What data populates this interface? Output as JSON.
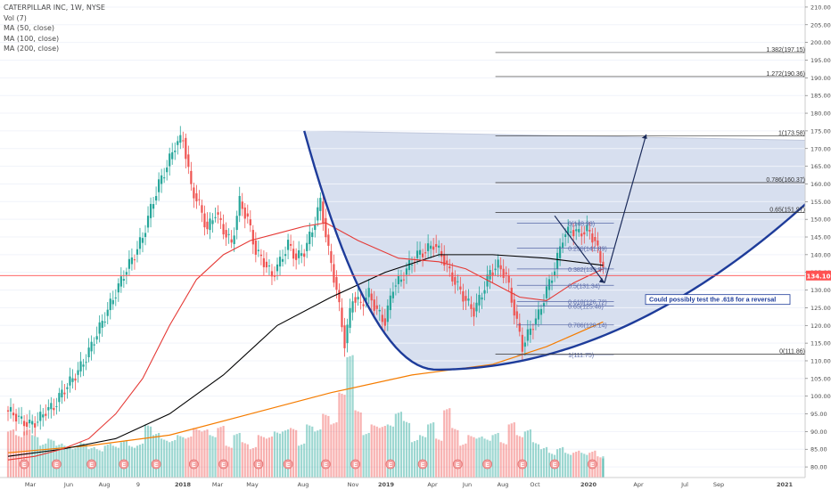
{
  "legend": {
    "title": "CATERPILLAR INC, 1W, NYSE",
    "vol": "Vol (7)",
    "ma50": "MA (50, close)",
    "ma100": "MA (100, close)",
    "ma200": "MA (200, close)"
  },
  "colors": {
    "up": "#26a69a",
    "down": "#ef5350",
    "ma50": "#e53935",
    "ma100": "#000000",
    "ma200": "#f57c00",
    "cup_line": "#1e3c9a",
    "cup_fill": "#c9d4ea",
    "price_line": "#ff5252",
    "fib": "#5a6aa8"
  },
  "chart_data": {
    "type": "candlestick",
    "title": "CATERPILLAR INC, 1W, NYSE",
    "ylim": [
      77,
      212
    ],
    "y_ticks": [
      80,
      85,
      90,
      95,
      100,
      105,
      110,
      115,
      120,
      125,
      130,
      135,
      140,
      145,
      150,
      155,
      160,
      165,
      170,
      175,
      180,
      185,
      190,
      195,
      200,
      205,
      210
    ],
    "x_ticks": [
      "Mar",
      "Jun",
      "Aug",
      "9",
      "2018",
      "Mar",
      "May",
      "Aug",
      "Nov",
      "2019",
      "Apr",
      "Jun",
      "Aug",
      "Oct",
      "2020",
      "Apr",
      "Jul",
      "Sep",
      "2021"
    ],
    "current_price": "134.10",
    "close_series": [
      [
        0,
        96
      ],
      [
        3,
        95
      ],
      [
        6,
        93
      ],
      [
        9,
        92
      ],
      [
        12,
        93
      ],
      [
        15,
        96
      ],
      [
        18,
        97
      ],
      [
        21,
        101
      ],
      [
        24,
        104
      ],
      [
        27,
        107
      ],
      [
        30,
        111
      ],
      [
        33,
        116
      ],
      [
        36,
        121
      ],
      [
        39,
        126
      ],
      [
        42,
        131
      ],
      [
        45,
        136
      ],
      [
        48,
        140
      ],
      [
        51,
        145
      ],
      [
        54,
        153
      ],
      [
        57,
        160
      ],
      [
        60,
        165
      ],
      [
        63,
        171
      ],
      [
        66,
        173
      ],
      [
        69,
        159
      ],
      [
        72,
        154
      ],
      [
        75,
        147
      ],
      [
        78,
        152
      ],
      [
        81,
        147
      ],
      [
        84,
        143
      ],
      [
        87,
        155
      ],
      [
        90,
        150
      ],
      [
        93,
        141
      ],
      [
        96,
        138
      ],
      [
        99,
        134
      ],
      [
        102,
        138
      ],
      [
        105,
        143
      ],
      [
        108,
        139
      ],
      [
        111,
        141
      ],
      [
        114,
        147
      ],
      [
        117,
        155
      ],
      [
        120,
        141
      ],
      [
        123,
        130
      ],
      [
        126,
        115
      ],
      [
        129,
        128
      ],
      [
        132,
        126
      ],
      [
        135,
        129
      ],
      [
        138,
        124
      ],
      [
        141,
        121
      ],
      [
        144,
        131
      ],
      [
        147,
        133
      ],
      [
        150,
        137
      ],
      [
        153,
        140
      ],
      [
        156,
        141
      ],
      [
        159,
        143
      ],
      [
        162,
        140
      ],
      [
        165,
        135
      ],
      [
        168,
        131
      ],
      [
        171,
        127
      ],
      [
        174,
        124
      ],
      [
        177,
        129
      ],
      [
        180,
        135
      ],
      [
        183,
        137
      ],
      [
        186,
        134
      ],
      [
        189,
        124
      ],
      [
        192,
        114
      ],
      [
        195,
        119
      ],
      [
        198,
        123
      ],
      [
        201,
        130
      ],
      [
        204,
        136
      ],
      [
        207,
        145
      ],
      [
        210,
        147
      ],
      [
        213,
        146
      ],
      [
        216,
        147
      ],
      [
        219,
        144
      ],
      [
        221,
        138
      ]
    ],
    "ma50": [
      [
        0,
        82
      ],
      [
        10,
        83
      ],
      [
        20,
        85
      ],
      [
        30,
        88
      ],
      [
        40,
        95
      ],
      [
        50,
        105
      ],
      [
        60,
        120
      ],
      [
        70,
        133
      ],
      [
        80,
        140
      ],
      [
        90,
        144
      ],
      [
        100,
        146
      ],
      [
        110,
        148
      ],
      [
        118,
        149
      ],
      [
        130,
        144
      ],
      [
        145,
        139
      ],
      [
        160,
        138
      ],
      [
        170,
        136
      ],
      [
        180,
        132
      ],
      [
        190,
        128
      ],
      [
        200,
        127
      ],
      [
        210,
        132
      ],
      [
        221,
        136
      ]
    ],
    "ma100": [
      [
        0,
        83
      ],
      [
        20,
        85
      ],
      [
        40,
        88
      ],
      [
        60,
        95
      ],
      [
        80,
        106
      ],
      [
        100,
        120
      ],
      [
        120,
        128
      ],
      [
        140,
        135
      ],
      [
        160,
        140
      ],
      [
        180,
        140
      ],
      [
        200,
        139
      ],
      [
        221,
        137
      ]
    ],
    "ma200": [
      [
        0,
        84
      ],
      [
        30,
        86
      ],
      [
        60,
        89
      ],
      [
        90,
        95
      ],
      [
        120,
        101
      ],
      [
        150,
        106
      ],
      [
        180,
        109
      ],
      [
        200,
        114
      ],
      [
        221,
        121
      ]
    ],
    "volume": [
      [
        0,
        90
      ],
      [
        3,
        89
      ],
      [
        6,
        90
      ],
      [
        9,
        89
      ],
      [
        12,
        86
      ],
      [
        15,
        88
      ],
      [
        18,
        86
      ],
      [
        21,
        86
      ],
      [
        24,
        85
      ],
      [
        27,
        87
      ],
      [
        30,
        85
      ],
      [
        33,
        85
      ],
      [
        36,
        86
      ],
      [
        39,
        86
      ],
      [
        42,
        87
      ],
      [
        45,
        86
      ],
      [
        48,
        86
      ],
      [
        51,
        92
      ],
      [
        54,
        89
      ],
      [
        57,
        88
      ],
      [
        60,
        87
      ],
      [
        63,
        89
      ],
      [
        66,
        88
      ],
      [
        69,
        91
      ],
      [
        72,
        90
      ],
      [
        75,
        89
      ],
      [
        78,
        91
      ],
      [
        81,
        86
      ],
      [
        84,
        89
      ],
      [
        87,
        87
      ],
      [
        90,
        85
      ],
      [
        93,
        89
      ],
      [
        96,
        88
      ],
      [
        99,
        90
      ],
      [
        102,
        90
      ],
      [
        105,
        91
      ],
      [
        108,
        86
      ],
      [
        111,
        92
      ],
      [
        114,
        90
      ],
      [
        117,
        95
      ],
      [
        120,
        92
      ],
      [
        123,
        101
      ],
      [
        126,
        111
      ],
      [
        129,
        96
      ],
      [
        132,
        89
      ],
      [
        135,
        92
      ],
      [
        138,
        91
      ],
      [
        141,
        92
      ],
      [
        144,
        95
      ],
      [
        147,
        93
      ],
      [
        150,
        87
      ],
      [
        153,
        89
      ],
      [
        156,
        92
      ],
      [
        159,
        88
      ],
      [
        162,
        96
      ],
      [
        165,
        91
      ],
      [
        168,
        86
      ],
      [
        171,
        89
      ],
      [
        174,
        88
      ],
      [
        177,
        88
      ],
      [
        180,
        89
      ],
      [
        183,
        87
      ],
      [
        186,
        92
      ],
      [
        189,
        89
      ],
      [
        192,
        90
      ],
      [
        195,
        87
      ],
      [
        198,
        85
      ],
      [
        201,
        84
      ],
      [
        204,
        85
      ],
      [
        207,
        84
      ],
      [
        210,
        84
      ],
      [
        213,
        84
      ],
      [
        216,
        84
      ],
      [
        219,
        83
      ],
      [
        221,
        83
      ]
    ],
    "earnings_markers_at": [
      6,
      18,
      31,
      43,
      55,
      69,
      80,
      93,
      104,
      118,
      129,
      142,
      154,
      167,
      178,
      191,
      203,
      217
    ],
    "cup_rim": {
      "left": [
        110,
        175
      ],
      "right": [
        320,
        172
      ]
    },
    "fib_levels": [
      {
        "label": "0(148.93)",
        "value": 148.93
      },
      {
        "label": "0.236(141.89)",
        "value": 141.89
      },
      {
        "label": "0.382(135.97)",
        "value": 135.97
      },
      {
        "label": "0.5(131.34)",
        "value": 131.34
      },
      {
        "label": "0.618(126.72)",
        "value": 126.72
      },
      {
        "label": "0.65(125.46)",
        "value": 125.46
      },
      {
        "label": "0.786(120.14)",
        "value": 120.14
      },
      {
        "label": "1(111.75)",
        "value": 111.75
      }
    ],
    "ext_levels": [
      {
        "label": "1.382(197.15)",
        "value": 197.15
      },
      {
        "label": "1.272(190.36)",
        "value": 190.36
      },
      {
        "label": "1(173.58)",
        "value": 173.58
      },
      {
        "label": "0.786(160.37)",
        "value": 160.37
      },
      {
        "label": "0.65(151.97)",
        "value": 151.97
      },
      {
        "label": "0(111.86)",
        "value": 111.86
      }
    ],
    "annotation": "Could possibly test the .618 for a reversal"
  }
}
